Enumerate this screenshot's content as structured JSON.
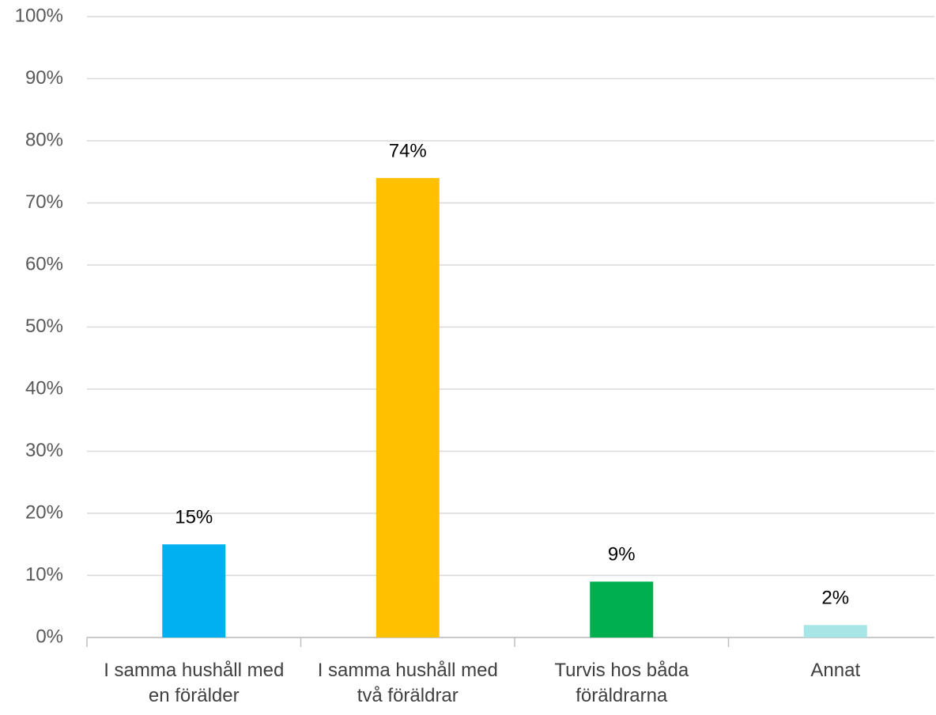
{
  "chart_data": {
    "type": "bar",
    "categories": [
      "I samma hushåll med en förälder",
      "I samma hushåll med två föräldrar",
      "Turvis hos båda föräldrarna",
      "Annat"
    ],
    "values": [
      15,
      74,
      9,
      2
    ],
    "value_labels": [
      "15%",
      "74%",
      "9%",
      "2%"
    ],
    "colors": [
      "#00b0f0",
      "#ffc000",
      "#00b050",
      "#a6e6e6"
    ],
    "ylim": [
      0,
      100
    ],
    "yticks": [
      {
        "value": 0,
        "label": "0%"
      },
      {
        "value": 10,
        "label": "10%"
      },
      {
        "value": 20,
        "label": "20%"
      },
      {
        "value": 30,
        "label": "30%"
      },
      {
        "value": 40,
        "label": "40%"
      },
      {
        "value": 50,
        "label": "50%"
      },
      {
        "value": 60,
        "label": "60%"
      },
      {
        "value": 70,
        "label": "70%"
      },
      {
        "value": 80,
        "label": "80%"
      },
      {
        "value": 90,
        "label": "90%"
      },
      {
        "value": 100,
        "label": "100%"
      }
    ],
    "grid": true
  }
}
